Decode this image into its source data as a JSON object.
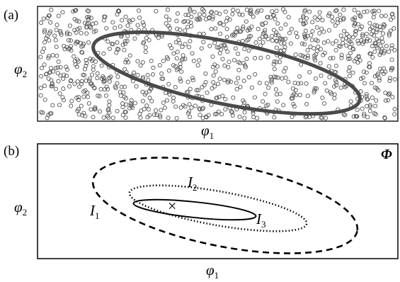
{
  "panel_a": {
    "label": "(a)",
    "x_axis_label": "φ",
    "x_axis_subscript": "1",
    "y_axis_label": "φ",
    "y_axis_subscript": "2"
  },
  "panel_b": {
    "label": "(b)",
    "x_axis_label": "φ",
    "x_axis_subscript": "1",
    "y_axis_label": "φ",
    "y_axis_subscript": "2",
    "space_label": "Φ",
    "curves": [
      {
        "label": "I",
        "subscript": "1",
        "style": "dashed"
      },
      {
        "label": "I",
        "subscript": "2",
        "style": "dotted"
      },
      {
        "label": "I",
        "subscript": "3",
        "style": "solid"
      }
    ],
    "center_marker": "×"
  },
  "colors": {
    "sample_marker": "#555555",
    "ellipse_highlight": "#4a4a4a",
    "outline": "#000000"
  }
}
